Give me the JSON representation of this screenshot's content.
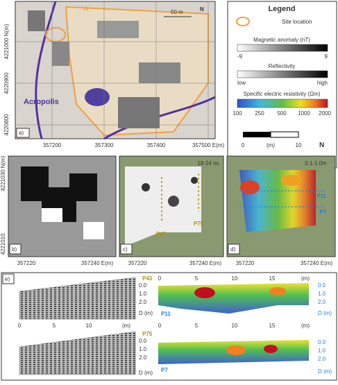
{
  "panel_a": {
    "label": "a)",
    "site": "A",
    "scale": "50 m",
    "north": "N",
    "place": "Acropolis",
    "y_labels": [
      "4221000 N(m)",
      "4220900",
      "4220800"
    ],
    "x_labels": [
      "357200",
      "357300",
      "357400",
      "357500 E(m)"
    ]
  },
  "legend": {
    "title": "Legend",
    "site": "Site location",
    "magnetic": "Magnetic anomaly (nT)",
    "magnetic_ticks": [
      "-9",
      "9"
    ],
    "reflectivity": "Reflectivity",
    "reflectivity_ticks": [
      "low",
      "high"
    ],
    "resistivity": "Specific electric resistivity (Ωm)",
    "resistivity_ticks": [
      "100",
      "250",
      "500",
      "1000",
      "2000"
    ],
    "scale": [
      "0",
      "(m)",
      "10"
    ],
    "north": "N"
  },
  "panel_b": {
    "label": "b)",
    "y_labels": [
      "4221030 N(m)",
      "4221010"
    ],
    "x_labels": [
      "357220",
      "357240 E(m)"
    ]
  },
  "panel_c": {
    "label": "c)",
    "window": "18-24 ns",
    "profiles": [
      "P43",
      "P75"
    ]
  },
  "panel_d": {
    "label": "d)",
    "depth": "0.1-1.0m",
    "profiles": [
      "P11",
      "P7"
    ]
  },
  "panel_e": {
    "label": "e)",
    "gpr_x": [
      "0",
      "5",
      "10",
      "(m)"
    ],
    "ert_x": [
      "0",
      "5",
      "10",
      "15",
      "(m)"
    ],
    "depth_ticks": [
      "0.0",
      "1.0",
      "2.0"
    ],
    "depth_label": "D (m)"
  }
}
